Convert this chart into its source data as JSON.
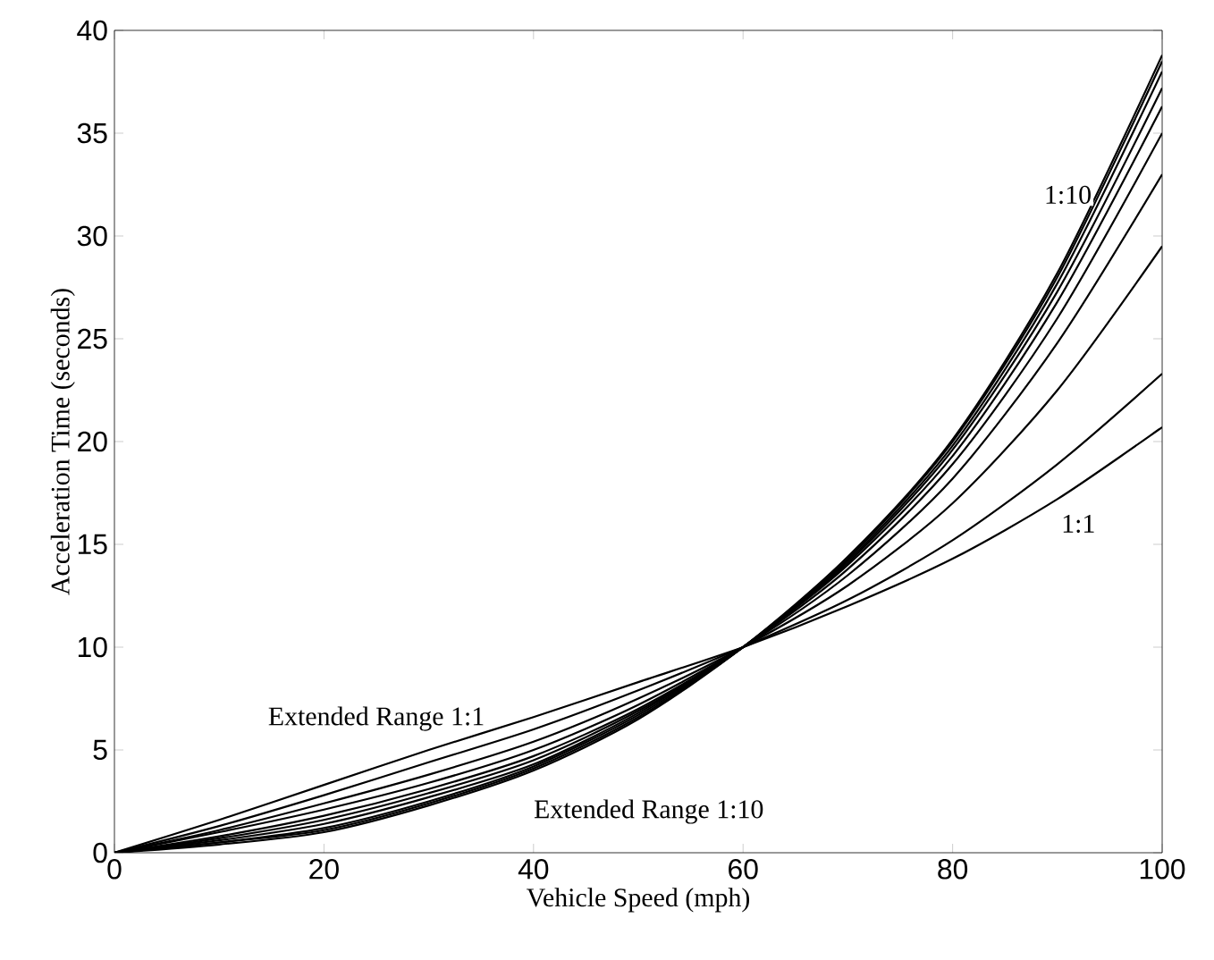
{
  "chart_data": {
    "type": "line",
    "xlabel": "Vehicle Speed (mph)",
    "ylabel": "Acceleration Time (seconds)",
    "x": [
      0,
      10,
      20,
      30,
      40,
      50,
      60,
      70,
      80,
      90,
      100
    ],
    "series": [
      {
        "color": "#000000",
        "values": [
          0,
          1.6,
          3.3,
          5.0,
          6.6,
          8.3,
          10,
          12.0,
          14.3,
          17.2,
          20.7
        ]
      },
      {
        "color": "#000000",
        "values": [
          0,
          1.3,
          2.8,
          4.4,
          6.0,
          7.9,
          10,
          12.3,
          15.2,
          18.9,
          23.3
        ]
      },
      {
        "color": "#000000",
        "values": [
          0,
          1.1,
          2.4,
          3.8,
          5.4,
          7.5,
          10,
          13.0,
          17.0,
          22.5,
          29.5
        ]
      },
      {
        "color": "#000000",
        "values": [
          0,
          1.0,
          2.1,
          3.4,
          5.0,
          7.2,
          10,
          13.5,
          18.2,
          24.8,
          33.0
        ]
      },
      {
        "color": "#000000",
        "values": [
          0,
          0.8,
          1.8,
          3.1,
          4.7,
          7.0,
          10,
          13.8,
          18.9,
          26.0,
          35.0
        ]
      },
      {
        "color": "#000000",
        "values": [
          0,
          0.7,
          1.6,
          2.9,
          4.5,
          6.9,
          10,
          14.0,
          19.3,
          26.8,
          36.3
        ]
      },
      {
        "color": "#000000",
        "values": [
          0,
          0.6,
          1.4,
          2.7,
          4.3,
          6.8,
          10,
          14.1,
          19.6,
          27.3,
          37.2
        ]
      },
      {
        "color": "#000000",
        "values": [
          0,
          0.5,
          1.2,
          2.5,
          4.2,
          6.7,
          10,
          14.2,
          19.8,
          27.7,
          38.0
        ]
      },
      {
        "color": "#000000",
        "values": [
          0,
          0.5,
          1.1,
          2.4,
          4.1,
          6.6,
          10,
          14.3,
          20.0,
          28.0,
          38.5
        ]
      },
      {
        "color": "#000000",
        "values": [
          0,
          0.4,
          1.0,
          2.3,
          4.0,
          6.5,
          10,
          14.4,
          20.1,
          28.2,
          38.8
        ]
      }
    ],
    "annotations": [
      {
        "text": "1:10",
        "x": 91,
        "y": 32
      },
      {
        "text": "1:1",
        "x": 92,
        "y": 16
      },
      "Extended Range 1:1",
      "Extended Range 1:10"
    ],
    "xlim": [
      0,
      100
    ],
    "ylim": [
      0,
      40
    ],
    "xticks": [
      0,
      20,
      40,
      60,
      80,
      100
    ],
    "yticks": [
      0,
      5,
      10,
      15,
      20,
      25,
      30,
      35,
      40
    ],
    "grid": false,
    "marker": "none",
    "line_style": "solid"
  }
}
